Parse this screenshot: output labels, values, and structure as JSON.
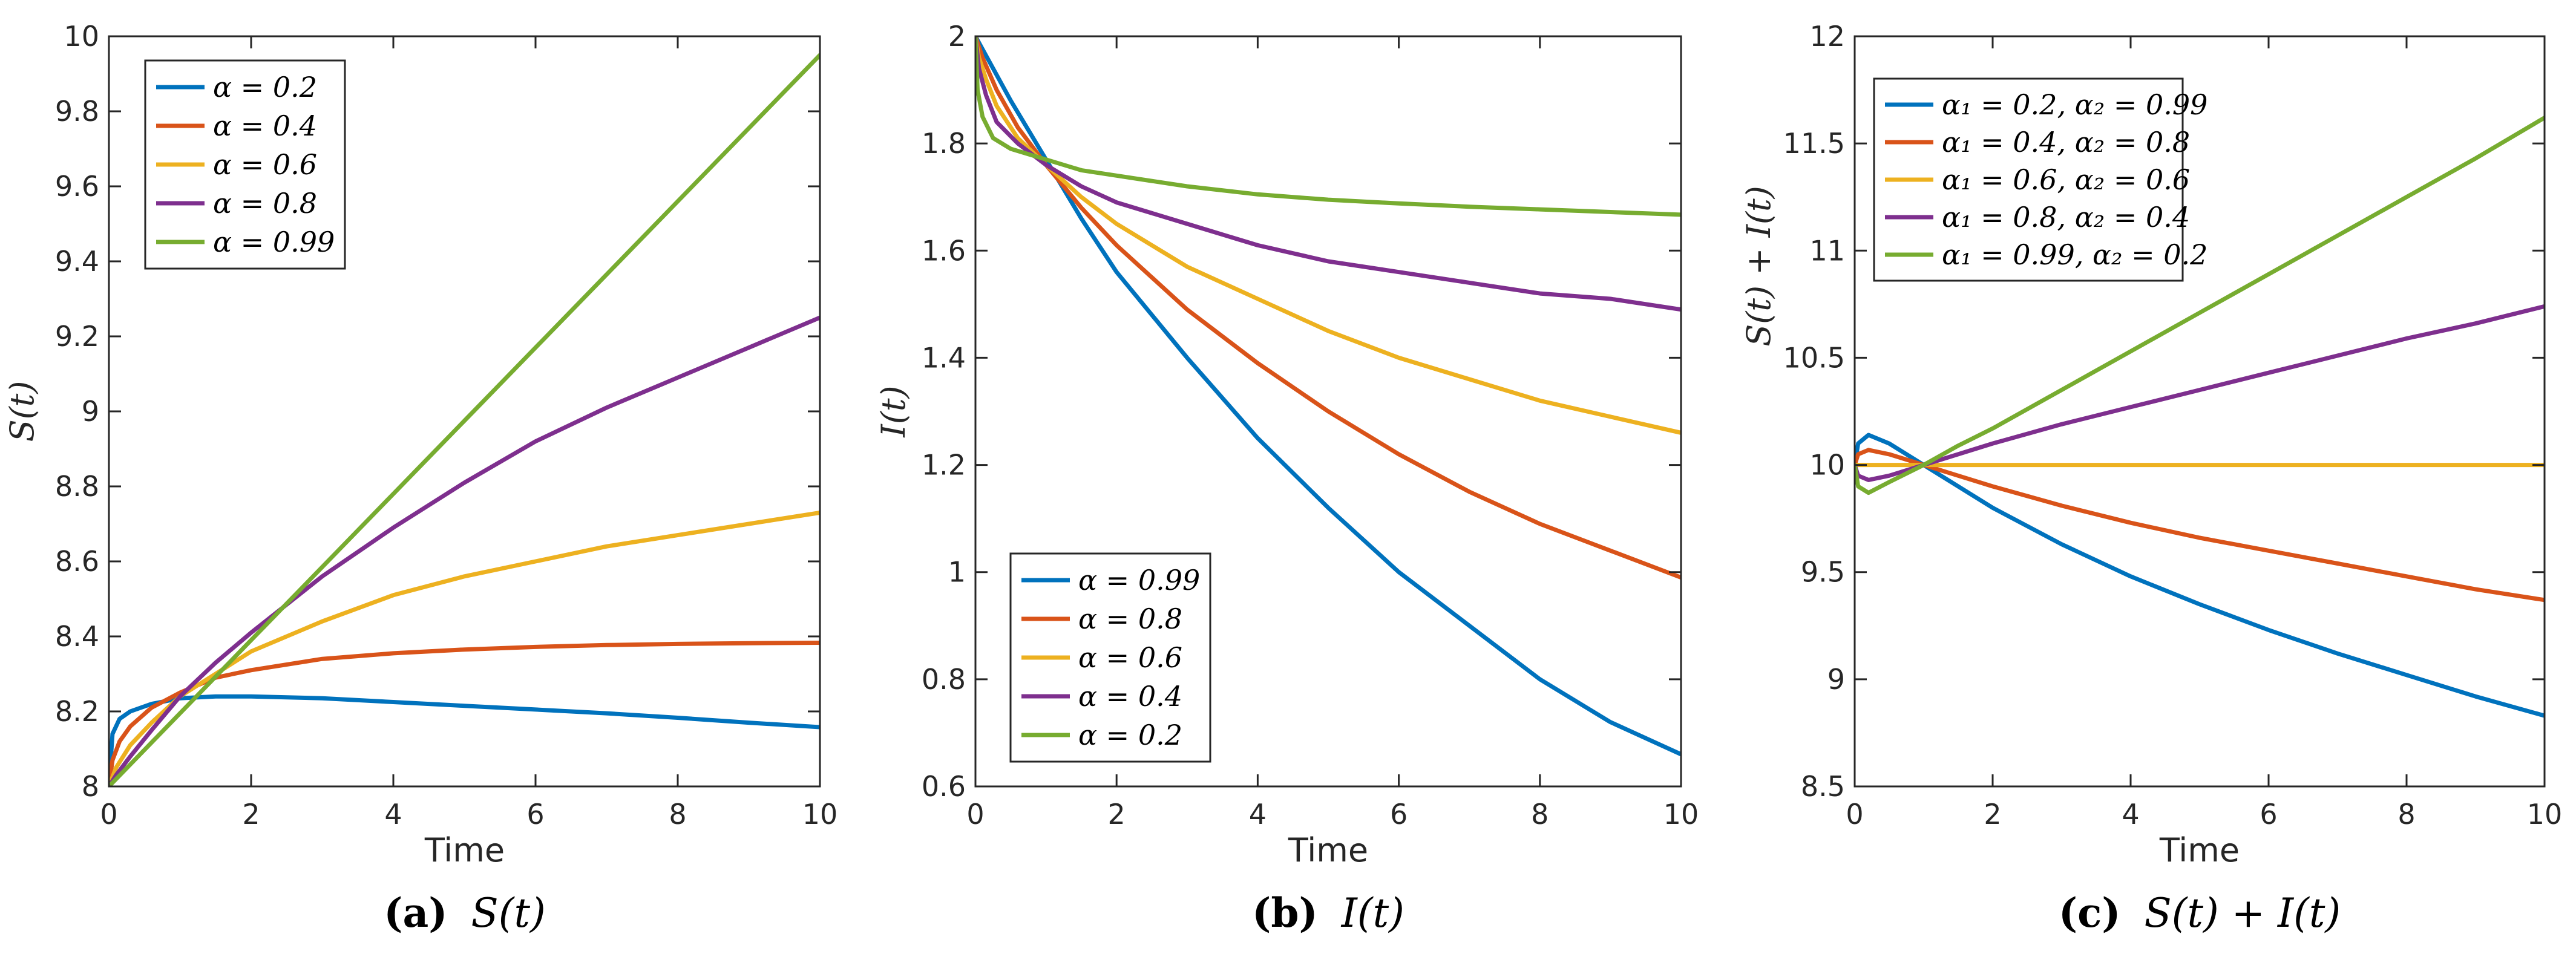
{
  "colors": {
    "blue": "#0072BD",
    "orange": "#D95319",
    "yellow": "#EDB120",
    "purple": "#7E2F8E",
    "green": "#77AC30",
    "axis": "#262626",
    "legend_border": "#262626"
  },
  "chart_data": [
    {
      "type": "line",
      "xlabel": "Time",
      "ylabel": "S(t)",
      "caption_letter": "(a)",
      "caption_text": "S(t)",
      "xlim": [
        0,
        10
      ],
      "ylim": [
        8,
        10
      ],
      "xticks": [
        "0",
        "2",
        "4",
        "6",
        "8",
        "10"
      ],
      "yticks": [
        "8",
        "8.2",
        "8.4",
        "8.6",
        "8.8",
        "9",
        "9.2",
        "9.4",
        "9.6",
        "9.8",
        "10"
      ],
      "legend_position": "top-left",
      "series": [
        {
          "name": "α = 0.2",
          "color": "#0072BD",
          "x": [
            0,
            0.05,
            0.15,
            0.3,
            0.6,
            1,
            1.5,
            2,
            3,
            4,
            5,
            6,
            7,
            8,
            9,
            10
          ],
          "y": [
            8,
            8.14,
            8.18,
            8.2,
            8.22,
            8.235,
            8.24,
            8.24,
            8.235,
            8.225,
            8.215,
            8.205,
            8.195,
            8.183,
            8.17,
            8.158
          ]
        },
        {
          "name": "α = 0.4",
          "color": "#D95319",
          "x": [
            0,
            0.05,
            0.15,
            0.3,
            0.6,
            1,
            1.5,
            2,
            3,
            4,
            5,
            6,
            7,
            8,
            9,
            10
          ],
          "y": [
            8,
            8.07,
            8.12,
            8.16,
            8.21,
            8.25,
            8.29,
            8.31,
            8.34,
            8.355,
            8.365,
            8.372,
            8.377,
            8.38,
            8.382,
            8.383
          ]
        },
        {
          "name": "α = 0.6",
          "color": "#EDB120",
          "x": [
            0,
            0.1,
            0.3,
            0.6,
            1,
            1.5,
            2,
            3,
            4,
            5,
            6,
            7,
            8,
            9,
            10
          ],
          "y": [
            8,
            8.05,
            8.11,
            8.17,
            8.24,
            8.3,
            8.36,
            8.44,
            8.51,
            8.56,
            8.6,
            8.64,
            8.67,
            8.7,
            8.73
          ]
        },
        {
          "name": "α = 0.8",
          "color": "#7E2F8E",
          "x": [
            0,
            0.1,
            0.3,
            0.6,
            1,
            1.5,
            2,
            3,
            4,
            5,
            6,
            7,
            8,
            9,
            10
          ],
          "y": [
            8,
            8.03,
            8.08,
            8.15,
            8.24,
            8.33,
            8.41,
            8.56,
            8.69,
            8.81,
            8.92,
            9.01,
            9.09,
            9.17,
            9.25
          ]
        },
        {
          "name": "α = 0.99",
          "color": "#77AC30",
          "x": [
            0,
            1,
            2,
            3,
            4,
            5,
            6,
            7,
            8,
            9,
            10
          ],
          "y": [
            8,
            8.195,
            8.39,
            8.585,
            8.78,
            8.975,
            9.17,
            9.365,
            9.56,
            9.755,
            9.95
          ]
        }
      ]
    },
    {
      "type": "line",
      "xlabel": "Time",
      "ylabel": "I(t)",
      "caption_letter": "(b)",
      "caption_text": "I(t)",
      "xlim": [
        0,
        10
      ],
      "ylim": [
        0.6,
        2
      ],
      "xticks": [
        "0",
        "2",
        "4",
        "6",
        "8",
        "10"
      ],
      "yticks": [
        "0.6",
        "0.8",
        "1",
        "1.2",
        "1.4",
        "1.6",
        "1.8",
        "2"
      ],
      "legend_position": "bottom-left",
      "series": [
        {
          "name": "α = 0.99",
          "color": "#0072BD",
          "x": [
            0,
            0.5,
            1,
            1.5,
            2,
            3,
            4,
            5,
            6,
            7,
            8,
            9,
            10
          ],
          "y": [
            2,
            1.88,
            1.77,
            1.66,
            1.56,
            1.4,
            1.25,
            1.12,
            1.0,
            0.9,
            0.8,
            0.72,
            0.66
          ]
        },
        {
          "name": "α = 0.8",
          "color": "#D95319",
          "x": [
            0,
            0.1,
            0.3,
            0.6,
            1,
            1.5,
            2,
            3,
            4,
            5,
            6,
            7,
            8,
            9,
            10
          ],
          "y": [
            2,
            1.96,
            1.9,
            1.83,
            1.76,
            1.68,
            1.61,
            1.49,
            1.39,
            1.3,
            1.22,
            1.15,
            1.09,
            1.04,
            0.99
          ]
        },
        {
          "name": "α = 0.6",
          "color": "#EDB120",
          "x": [
            0,
            0.05,
            0.15,
            0.3,
            0.6,
            1,
            1.5,
            2,
            3,
            4,
            5,
            6,
            7,
            8,
            9,
            10
          ],
          "y": [
            2,
            1.96,
            1.92,
            1.87,
            1.81,
            1.76,
            1.7,
            1.65,
            1.57,
            1.51,
            1.45,
            1.4,
            1.36,
            1.32,
            1.29,
            1.26
          ]
        },
        {
          "name": "α = 0.4",
          "color": "#7E2F8E",
          "x": [
            0,
            0.05,
            0.15,
            0.3,
            0.6,
            1,
            1.5,
            2,
            3,
            4,
            5,
            6,
            7,
            8,
            9,
            10
          ],
          "y": [
            2,
            1.94,
            1.89,
            1.84,
            1.8,
            1.76,
            1.72,
            1.69,
            1.65,
            1.61,
            1.58,
            1.56,
            1.54,
            1.52,
            1.51,
            1.49
          ]
        },
        {
          "name": "α = 0.2",
          "color": "#77AC30",
          "x": [
            0,
            0.03,
            0.1,
            0.25,
            0.5,
            1,
            1.5,
            2,
            3,
            4,
            5,
            6,
            7,
            8,
            9,
            10
          ],
          "y": [
            2,
            1.9,
            1.85,
            1.81,
            1.79,
            1.77,
            1.75,
            1.74,
            1.72,
            1.705,
            1.695,
            1.688,
            1.682,
            1.677,
            1.672,
            1.667
          ]
        }
      ]
    },
    {
      "type": "line",
      "xlabel": "Time",
      "ylabel": "S(t) + I(t)",
      "caption_letter": "(c)",
      "caption_text": "S(t) + I(t)",
      "xlim": [
        0,
        10
      ],
      "ylim": [
        8.5,
        12
      ],
      "xticks": [
        "0",
        "2",
        "4",
        "6",
        "8",
        "10"
      ],
      "yticks": [
        "8.5",
        "9",
        "9.5",
        "10",
        "10.5",
        "11",
        "11.5",
        "12"
      ],
      "legend_position": "top-left",
      "series": [
        {
          "name": "α₁ = 0.2, α₂ = 0.99",
          "color": "#0072BD",
          "x": [
            0,
            0.05,
            0.2,
            0.5,
            1,
            1.5,
            2,
            3,
            4,
            5,
            6,
            7,
            8,
            9,
            10
          ],
          "y": [
            10,
            10.1,
            10.14,
            10.1,
            10.0,
            9.9,
            9.8,
            9.63,
            9.48,
            9.35,
            9.23,
            9.12,
            9.02,
            8.92,
            8.83
          ]
        },
        {
          "name": "α₁ = 0.4, α₂ = 0.8",
          "color": "#D95319",
          "x": [
            0,
            0.05,
            0.2,
            0.5,
            1,
            1.5,
            2,
            3,
            4,
            5,
            6,
            7,
            8,
            9,
            10
          ],
          "y": [
            10,
            10.05,
            10.07,
            10.05,
            10.0,
            9.95,
            9.9,
            9.81,
            9.73,
            9.66,
            9.6,
            9.54,
            9.48,
            9.42,
            9.37
          ]
        },
        {
          "name": "α₁ = 0.6, α₂ = 0.6",
          "color": "#EDB120",
          "x": [
            0,
            10
          ],
          "y": [
            10,
            10
          ]
        },
        {
          "name": "α₁ = 0.8, α₂ = 0.4",
          "color": "#7E2F8E",
          "x": [
            0,
            0.05,
            0.2,
            0.5,
            1,
            1.5,
            2,
            3,
            4,
            5,
            6,
            7,
            8,
            9,
            10
          ],
          "y": [
            10,
            9.95,
            9.93,
            9.95,
            10.0,
            10.05,
            10.1,
            10.19,
            10.27,
            10.35,
            10.43,
            10.51,
            10.59,
            10.66,
            10.74
          ]
        },
        {
          "name": "α₁ = 0.99, α₂ = 0.2",
          "color": "#77AC30",
          "x": [
            0,
            0.05,
            0.2,
            0.5,
            1,
            1.5,
            2,
            3,
            4,
            5,
            6,
            7,
            8,
            9,
            10
          ],
          "y": [
            10,
            9.9,
            9.87,
            9.92,
            10.0,
            10.09,
            10.17,
            10.35,
            10.53,
            10.71,
            10.89,
            11.07,
            11.25,
            11.43,
            11.62
          ]
        }
      ]
    }
  ]
}
